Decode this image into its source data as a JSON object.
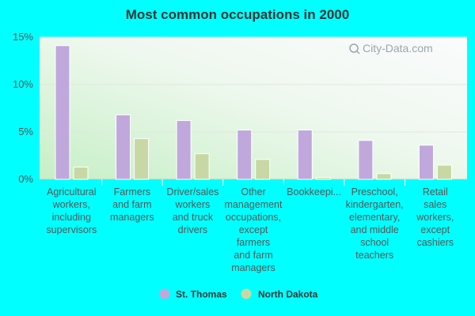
{
  "chart_data": {
    "type": "bar",
    "title": "Most common occupations in 2000",
    "xlabel": "",
    "ylabel": "",
    "ylim": [
      0,
      15
    ],
    "yticks": [
      "0%",
      "5%",
      "10%",
      "15%"
    ],
    "ytick_values": [
      0,
      5,
      10,
      15
    ],
    "grid": true,
    "legend_position": "bottom",
    "categories": [
      [
        "Agricultural",
        "workers,",
        "including",
        "supervisors"
      ],
      [
        "Farmers",
        "and farm",
        "managers"
      ],
      [
        "Driver/sales",
        "workers",
        "and truck",
        "drivers"
      ],
      [
        "Other",
        "management",
        "occupations,",
        "except",
        "farmers",
        "and farm",
        "managers"
      ],
      [
        "Bookkeepi..."
      ],
      [
        "Preschool,",
        "kindergarten,",
        "elementary,",
        "and middle",
        "school",
        "teachers"
      ],
      [
        "Retail",
        "sales",
        "workers,",
        "except",
        "cashiers"
      ]
    ],
    "series": [
      {
        "name": "St. Thomas",
        "color": "#c0a8dc",
        "values": [
          14.1,
          6.8,
          6.2,
          5.2,
          5.2,
          4.1,
          3.6
        ]
      },
      {
        "name": "North Dakota",
        "color": "#c8d8a4",
        "values": [
          1.3,
          4.3,
          2.7,
          2.1,
          0.2,
          0.6,
          1.5
        ]
      }
    ]
  },
  "watermark": {
    "text": "City-Data.com",
    "icon": "search-icon"
  }
}
